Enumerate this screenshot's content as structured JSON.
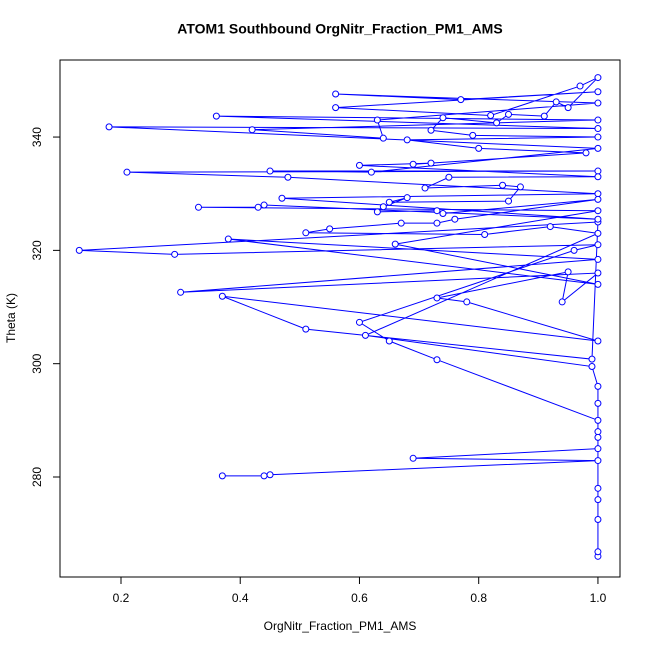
{
  "chart_data": {
    "type": "line",
    "title": "ATOM1 Southbound OrgNitr_Fraction_PM1_AMS",
    "x_label": "OrgNitr_Fraction_PM1_AMS",
    "y_label": "Theta (K)",
    "color": "#0000ff",
    "markers": true,
    "xlim": [
      0.0977,
      1.037
    ],
    "ylim": [
      262.35,
      353.6
    ],
    "xticks": [
      0.2,
      0.4,
      0.6,
      0.8,
      {
        "value": 1,
        "label": "1.0"
      }
    ],
    "yticks": [
      280,
      300,
      320,
      340
    ],
    "x": [
      0.37,
      0.44,
      0.45,
      1.0,
      0.69,
      1.0,
      1.0,
      1.0,
      1.0,
      1.0,
      1.0,
      1.0,
      0.73,
      0.65,
      0.6,
      0.96,
      1.0,
      0.29,
      0.13,
      1.0,
      0.99,
      0.51,
      0.37,
      1.0,
      0.78,
      0.73,
      0.95,
      0.94,
      1.0,
      0.3,
      1.0,
      0.38,
      1.0,
      0.66,
      1.0,
      0.33,
      0.43,
      0.44,
      1.0,
      0.47,
      1.0,
      0.48,
      0.21,
      1.0,
      0.45,
      0.62,
      1.0,
      0.18,
      1.0,
      0.36,
      1.0,
      0.42,
      0.64,
      0.63,
      1.0,
      0.56,
      0.77,
      1.0,
      0.56,
      0.82,
      0.97,
      1.0,
      0.95,
      0.93,
      0.91,
      0.85,
      0.83,
      0.74,
      0.72,
      0.79,
      1.0,
      0.68,
      0.8,
      0.98,
      0.69,
      0.72,
      0.6,
      1.0,
      0.75,
      0.71,
      0.84,
      0.87,
      0.85,
      0.65,
      0.68,
      0.64,
      0.63,
      0.73,
      0.74,
      1.0,
      0.76,
      0.73,
      0.67,
      0.55,
      0.51,
      0.81,
      0.92,
      1.0,
      0.61,
      0.99,
      1.0,
      1.0,
      1.0,
      1.0
    ],
    "values": [
      280.2,
      280.2,
      280.4,
      282.9,
      283.3,
      285,
      278,
      276,
      272.5,
      266,
      266.8,
      290,
      300.7,
      304,
      307.3,
      320,
      321,
      319.3,
      320,
      325,
      300.8,
      306.1,
      311.9,
      304,
      310.9,
      311.6,
      316.2,
      310.9,
      316,
      312.6,
      318.4,
      322,
      314,
      321.1,
      327,
      327.6,
      327.6,
      328,
      325.5,
      329.2,
      330,
      332.9,
      333.8,
      334,
      334,
      333.8,
      338,
      341.8,
      341.5,
      343.7,
      343,
      341.3,
      339.8,
      343,
      346,
      347.6,
      346.6,
      348,
      345.2,
      343.8,
      349,
      350.5,
      345.2,
      346.2,
      343.7,
      344,
      342.5,
      343.4,
      341.2,
      340.3,
      340,
      339.5,
      338,
      337.2,
      335.2,
      335.4,
      335,
      333,
      332.9,
      331,
      331.5,
      331.2,
      328.7,
      328.5,
      329.3,
      327.7,
      326.8,
      327,
      326.5,
      329,
      325.5,
      324.8,
      324.8,
      323.8,
      323.1,
      322.8,
      324.2,
      323,
      305,
      299.5,
      296,
      293,
      288,
      287
    ]
  }
}
